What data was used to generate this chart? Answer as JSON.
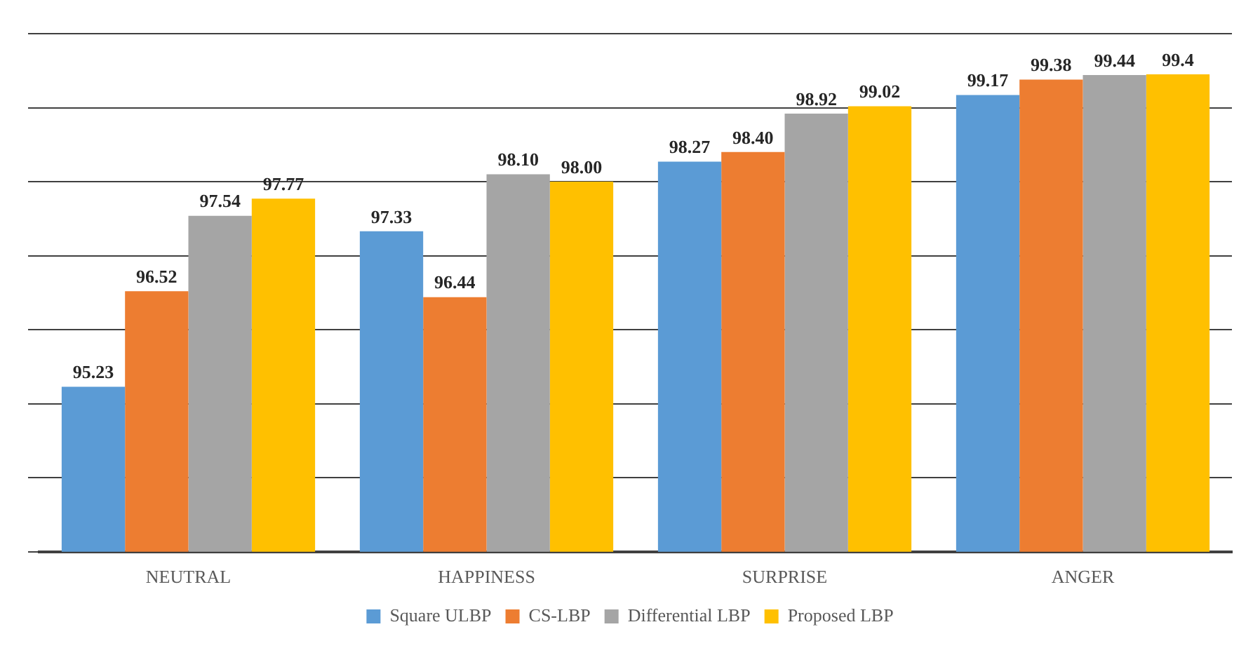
{
  "chart_data": {
    "type": "bar",
    "categories": [
      "NEUTRAL",
      "HAPPINESS",
      "SURPRISE",
      "ANGER"
    ],
    "series": [
      {
        "name": "Square ULBP",
        "color": "#5b9bd5",
        "values": [
          95.23,
          97.33,
          98.27,
          99.17
        ],
        "value_labels": [
          "95.23",
          "97.33",
          "98.27",
          "99.17"
        ]
      },
      {
        "name": "CS-LBP",
        "color": "#ed7d31",
        "values": [
          96.52,
          96.44,
          98.4,
          99.38
        ],
        "value_labels": [
          "96.52",
          "96.44",
          "98.40",
          "99.38"
        ]
      },
      {
        "name": "Differential LBP",
        "color": "#a5a5a5",
        "values": [
          97.54,
          98.1,
          98.92,
          99.44
        ],
        "value_labels": [
          "97.54",
          "98.10",
          "98.92",
          "99.44"
        ]
      },
      {
        "name": "Proposed LBP",
        "color": "#ffc000",
        "values": [
          97.77,
          98.0,
          99.02,
          99.45
        ],
        "value_labels": [
          "97.77",
          "98.00",
          "99.02",
          "99.4"
        ]
      }
    ],
    "ylim": [
      93,
      100
    ],
    "yticks": [
      93,
      94,
      95,
      96,
      97,
      98,
      99,
      100
    ],
    "grid": "y",
    "tick_labels": "x",
    "legend": "bottom"
  }
}
